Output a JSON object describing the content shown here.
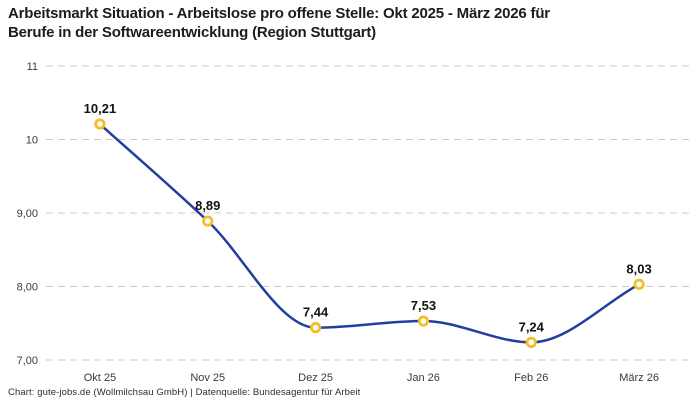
{
  "header": {
    "title_lines": [
      "Arbeitsmarkt Situation - Arbeitslose pro offene Stelle: Okt 2025 - März 2026 für",
      "Berufe in der Softwareentwicklung (Region Stuttgart)"
    ]
  },
  "footer": {
    "text": "Chart: gute-jobs.de (Wollmilchsau GmbH) | Datenquelle: Bundesagentur für Arbeit"
  },
  "chart_data": {
    "type": "line",
    "title": "Arbeitsmarkt Situation - Arbeitslose pro offene Stelle: Okt 2025 - März 2026 für Berufe in der Softwareentwicklung (Region Stuttgart)",
    "categories": [
      "Okt 25",
      "Nov 25",
      "Dez 25",
      "Jan 26",
      "Feb 26",
      "März 26"
    ],
    "values": [
      10.21,
      8.89,
      7.44,
      7.53,
      7.24,
      8.03
    ],
    "value_labels": [
      "10,21",
      "8,89",
      "7,44",
      "7,53",
      "7,24",
      "8,03"
    ],
    "xlabel": "",
    "ylabel": "",
    "ylim": [
      7,
      11
    ],
    "y_ticks": [
      {
        "value": 7,
        "label": "7,00"
      },
      {
        "value": 8,
        "label": "8,00"
      },
      {
        "value": 9,
        "label": "9,00"
      },
      {
        "value": 10,
        "label": "10"
      },
      {
        "value": 11,
        "label": "11"
      }
    ],
    "grid": "horizontal-dashed",
    "legend": "none",
    "colors": {
      "line": "#223f9e",
      "marker_ring": "#f6be26",
      "marker_fill": "#ffffff",
      "grid": "#cbcbcb",
      "tick_text": "#3b3b3b",
      "point_label_text": "#121212"
    }
  }
}
